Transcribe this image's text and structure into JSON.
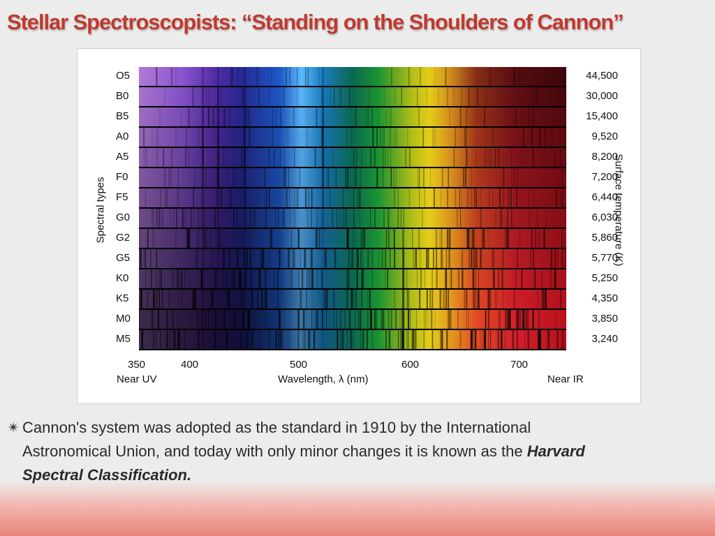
{
  "slide": {
    "title": "Stellar Spectroscopists: “Standing on the Shoulders of Cannon”"
  },
  "figure": {
    "left_axis_title": "Spectral types",
    "right_axis_title": "Surface temperature (K)",
    "x_axis_title": "Wavelength, λ (nm)",
    "near_uv_label": "Near UV",
    "near_ir_label": "Near IR",
    "x_ticks": [
      "350",
      "400",
      "500",
      "600",
      "700"
    ],
    "spectral_types": [
      "O5",
      "B0",
      "B5",
      "A0",
      "A5",
      "F0",
      "F5",
      "G0",
      "G2",
      "G5",
      "K0",
      "K5",
      "M0",
      "M5"
    ],
    "surface_temperatures": [
      "44,500",
      "30,000",
      "15,400",
      "9,520",
      "8,200",
      "7,200",
      "6,440",
      "6,030",
      "5,860",
      "5,770",
      "5,250",
      "4,350",
      "3,850",
      "3,240"
    ]
  },
  "caption": {
    "bullet": "✴",
    "line1": "Cannon's system was adopted as the standard in 1910 by the International",
    "line2_plain": "Astronomical Union, and today with only minor changes it is known as the ",
    "line2_emphasis": "Harvard",
    "line3_emphasis": "Spectral Classification."
  }
}
